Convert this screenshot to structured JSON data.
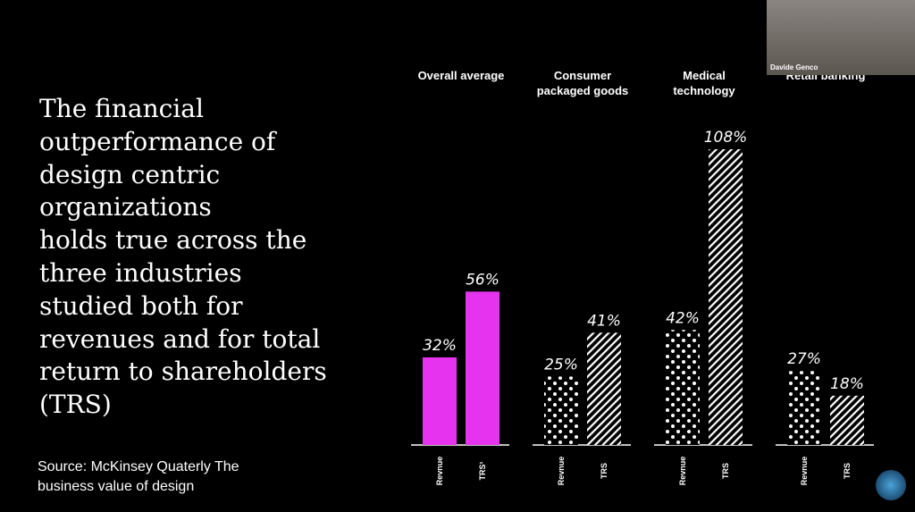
{
  "headline": [
    "The financial",
    "outperformance of",
    "design centric",
    "organizations",
    "holds true across the",
    "three industries",
    "studied both for",
    "revenues and for total",
    "return to shareholders",
    "(TRS)"
  ],
  "source": [
    "Source: McKinsey Quaterly The",
    "business value of design"
  ],
  "participant": "Davide Genco",
  "chart_data": {
    "type": "bar",
    "categories": [
      "Overall average",
      "Consumer packaged goods",
      "Medical technology",
      "Retail banking"
    ],
    "bar_labels": [
      [
        "Revnue",
        "TRS¹"
      ],
      [
        "Revnue",
        "TRS"
      ],
      [
        "Revnue",
        "TRS"
      ],
      [
        "Revnue",
        "TRS"
      ]
    ],
    "patterns": [
      [
        "solid",
        "solid"
      ],
      [
        "dots",
        "stripes"
      ],
      [
        "dots",
        "stripes"
      ],
      [
        "dots",
        "stripes"
      ]
    ],
    "color": "#e533ef",
    "series": [
      {
        "name": "Revnue",
        "values": [
          32,
          25,
          42,
          27
        ],
        "value_labels": [
          "32%",
          "25%",
          "42%",
          "27%"
        ]
      },
      {
        "name": "TRS",
        "values": [
          56,
          41,
          108,
          18
        ],
        "value_labels": [
          "56%",
          "41%",
          "108%",
          "18%"
        ]
      }
    ]
  }
}
